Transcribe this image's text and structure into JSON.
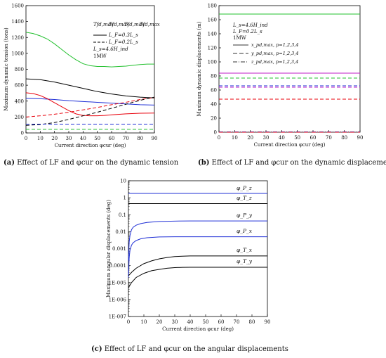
{
  "chart_data": [
    {
      "id": "a",
      "type": "line",
      "xlabel": "Current direction φcur (deg)",
      "ylabel": "Maximum dynamic tension (tons)",
      "xlim": [
        0,
        90
      ],
      "ylim": [
        0,
        1600
      ],
      "xticks": [
        0,
        10,
        20,
        30,
        40,
        50,
        60,
        70,
        80,
        90
      ],
      "yticks": [
        0,
        200,
        400,
        600,
        800,
        1000,
        1200,
        1400,
        1600
      ],
      "legend_header": [
        "Tfd,max",
        "Tfd,max",
        "Tfd,max",
        "Tfd,max"
      ],
      "legend_colors": [
        "#000000",
        "#e8000b",
        "#1f2fd6",
        "#22c02e"
      ],
      "legend_lines": [
        "L_F=0.3L_s",
        "L_F=0.2L_s"
      ],
      "legend_text": [
        "L_s=4.6H_ind",
        "1MW"
      ],
      "series": [
        {
          "name": "",
          "color": "#22c02e",
          "dash": "solid",
          "x": [
            0,
            5,
            10,
            15,
            20,
            25,
            30,
            35,
            40,
            45,
            50,
            55,
            60,
            65,
            70,
            75,
            80,
            85,
            90
          ],
          "y": [
            1265,
            1250,
            1220,
            1180,
            1120,
            1050,
            980,
            920,
            870,
            845,
            835,
            835,
            830,
            835,
            840,
            850,
            860,
            865,
            865
          ]
        },
        {
          "name": "",
          "color": "#000000",
          "dash": "solid",
          "x": [
            0,
            10,
            20,
            30,
            40,
            50,
            60,
            70,
            80,
            90
          ],
          "y": [
            680,
            670,
            640,
            600,
            560,
            520,
            490,
            465,
            450,
            440
          ]
        },
        {
          "name": "",
          "color": "#1f2fd6",
          "dash": "solid",
          "x": [
            0,
            10,
            20,
            30,
            40,
            50,
            60,
            70,
            80,
            90
          ],
          "y": [
            435,
            430,
            420,
            405,
            395,
            385,
            375,
            365,
            355,
            350
          ]
        },
        {
          "name": "",
          "color": "#e8000b",
          "dash": "solid",
          "x": [
            0,
            5,
            10,
            15,
            20,
            25,
            30,
            35,
            40,
            45,
            50,
            55,
            60,
            70,
            80,
            90
          ],
          "y": [
            505,
            495,
            470,
            430,
            380,
            330,
            280,
            240,
            220,
            215,
            215,
            220,
            228,
            240,
            248,
            250
          ]
        },
        {
          "name": "",
          "color": "#e8000b",
          "dash": "dash",
          "x": [
            0,
            10,
            20,
            30,
            40,
            50,
            60,
            70,
            80,
            90
          ],
          "y": [
            200,
            215,
            235,
            260,
            290,
            320,
            355,
            385,
            420,
            445
          ]
        },
        {
          "name": "",
          "color": "#000000",
          "dash": "dash",
          "x": [
            0,
            10,
            20,
            30,
            40,
            50,
            60,
            70,
            80,
            90
          ],
          "y": [
            95,
            105,
            130,
            170,
            215,
            260,
            310,
            360,
            410,
            450
          ]
        },
        {
          "name": "",
          "color": "#1f2fd6",
          "dash": "dash",
          "x": [
            0,
            10,
            20,
            30,
            40,
            50,
            60,
            70,
            80,
            90
          ],
          "y": [
            110,
            110,
            110,
            110,
            110,
            110,
            110,
            110,
            110,
            110
          ]
        },
        {
          "name": "",
          "color": "#22c02e",
          "dash": "dash",
          "x": [
            0,
            10,
            20,
            30,
            40,
            50,
            60,
            70,
            80,
            90
          ],
          "y": [
            45,
            45,
            45,
            45,
            45,
            45,
            45,
            45,
            45,
            45
          ]
        }
      ]
    },
    {
      "id": "b",
      "type": "line",
      "xlabel": "Current direction φcur (deg)",
      "ylabel": "Maximum dynamic displacements (m)",
      "xlim": [
        0,
        90
      ],
      "ylim": [
        0,
        180
      ],
      "xticks": [
        0,
        10,
        20,
        30,
        40,
        50,
        60,
        70,
        80,
        90
      ],
      "yticks": [
        0,
        20,
        40,
        60,
        80,
        100,
        120,
        140,
        160,
        180
      ],
      "legend_text": [
        "L_s=4.6H_ind",
        "L_F=0.2L_s",
        "1MW"
      ],
      "legend_lines": [
        "x_pd,max, p=1,2,3,4",
        "y_pd,max, p=1,2,3,4",
        "z_pd,max, p=1,2,3,4"
      ],
      "series": [
        {
          "name": "",
          "color": "#22c02e",
          "dash": "solid",
          "x": [
            0,
            90
          ],
          "y": [
            168,
            168
          ]
        },
        {
          "name": "",
          "color": "#c21fc8",
          "dash": "solid",
          "x": [
            0,
            90
          ],
          "y": [
            84,
            84
          ]
        },
        {
          "name": "",
          "color": "#22c02e",
          "dash": "dash",
          "x": [
            0,
            90
          ],
          "y": [
            77,
            77
          ]
        },
        {
          "name": "",
          "color": "#1f2fd6",
          "dash": "dash",
          "x": [
            0,
            90
          ],
          "y": [
            66,
            66
          ]
        },
        {
          "name": "",
          "color": "#c21fc8",
          "dash": "dash",
          "x": [
            0,
            90
          ],
          "y": [
            64,
            64
          ]
        },
        {
          "name": "",
          "color": "#e8000b",
          "dash": "dash",
          "x": [
            0,
            90
          ],
          "y": [
            47,
            47
          ]
        },
        {
          "name": "",
          "color": "#1f2fd6",
          "dash": "dashdot",
          "x": [
            0,
            90
          ],
          "y": [
            0.5,
            0.5
          ]
        },
        {
          "name": "",
          "color": "#e8000b",
          "dash": "dashdot",
          "x": [
            0,
            90
          ],
          "y": [
            0,
            0
          ]
        }
      ]
    },
    {
      "id": "c",
      "type": "line",
      "yscale": "log",
      "xlabel": "Current direction φcur (deg)",
      "ylabel": "Maximum angular displacements (deg)",
      "xlim": [
        0,
        90
      ],
      "ylim": [
        1e-07,
        10
      ],
      "xticks": [
        0,
        10,
        20,
        30,
        40,
        50,
        60,
        70,
        80,
        90
      ],
      "ytick_labels": [
        "1E-007",
        "1E-006",
        "1E-005",
        "0.0001",
        "0.001",
        "0.01",
        "0.1",
        "1",
        "10"
      ],
      "series": [
        {
          "name": "φ_P_z",
          "color": "#1f2fd6",
          "dash": "solid",
          "x": [
            0,
            90
          ],
          "y": [
            1.8,
            1.8
          ]
        },
        {
          "name": "φ_T_z",
          "color": "#000000",
          "dash": "solid",
          "x": [
            0,
            90
          ],
          "y": [
            0.45,
            0.45
          ]
        },
        {
          "name": "φ_P_y",
          "color": "#1f2fd6",
          "dash": "solid",
          "x": [
            0,
            0.5,
            1,
            2,
            3,
            5,
            8,
            12,
            20,
            30,
            40,
            60,
            90
          ],
          "y": [
            0.0002,
            0.0025,
            0.006,
            0.013,
            0.018,
            0.024,
            0.03,
            0.035,
            0.04,
            0.042,
            0.043,
            0.043,
            0.043
          ]
        },
        {
          "name": "φ_P_x",
          "color": "#1f2fd6",
          "dash": "solid",
          "x": [
            0,
            0.5,
            1,
            2,
            3,
            5,
            8,
            12,
            20,
            30,
            40,
            60,
            90
          ],
          "y": [
            2e-05,
            0.0003,
            0.0008,
            0.0016,
            0.0022,
            0.003,
            0.0038,
            0.0044,
            0.0049,
            0.005,
            0.005,
            0.005,
            0.005
          ]
        },
        {
          "name": "φ_T_x",
          "color": "#000000",
          "dash": "solid",
          "x": [
            0,
            2,
            5,
            10,
            15,
            20,
            25,
            30,
            35,
            40,
            60,
            90
          ],
          "y": [
            2.5e-05,
            4e-05,
            7e-05,
            0.00013,
            0.00019,
            0.00025,
            0.0003,
            0.00034,
            0.00036,
            0.00037,
            0.00037,
            0.00037
          ]
        },
        {
          "name": "φ_T_y",
          "color": "#000000",
          "dash": "solid",
          "x": [
            0,
            2,
            5,
            10,
            15,
            20,
            25,
            30,
            35,
            40,
            60,
            90
          ],
          "y": [
            5e-06,
            1e-05,
            2e-05,
            3.5e-05,
            5e-05,
            6e-05,
            7e-05,
            7.6e-05,
            7.9e-05,
            8e-05,
            8e-05,
            8e-05
          ]
        }
      ]
    }
  ],
  "captions": {
    "a_label": "(a)",
    "a_text": " Effect of LF and φcur on the dynamic tension",
    "b_label": "(b)",
    "b_text": " Effect of LF and φcur on the dynamic displacements",
    "c_label": "(c)",
    "c_text": " Effect of LF and φcur on the angular displacements"
  }
}
